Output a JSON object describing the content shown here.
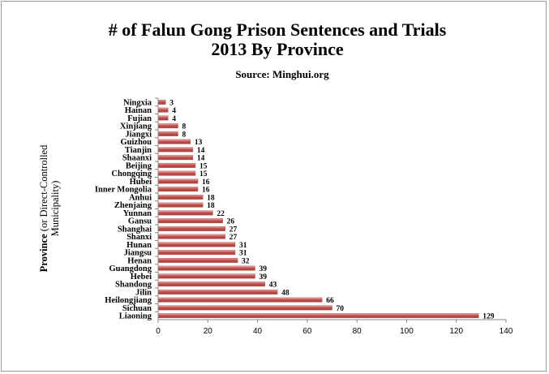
{
  "chart_data": {
    "type": "bar",
    "orientation": "horizontal",
    "title_line1": "# of Falun Gong Prison Sentences and Trials",
    "title_line2": "2013 By Province",
    "subtitle": "Source: Minghui.org",
    "ylabel_bold": "Province",
    "ylabel_rest": " (or Direct-Controlled",
    "ylabel_line2": "Municipality)",
    "xlabel": "",
    "xlim": [
      0,
      140
    ],
    "xticks": [
      0,
      20,
      40,
      60,
      80,
      100,
      120,
      140
    ],
    "grid": false,
    "legend": "none",
    "bar_color": "#c0504d",
    "bar_highlight": "#e8b4b2",
    "categories": [
      "Ningxia",
      "Hainan",
      "Fujian",
      "Xinjiang",
      "Jiangxi",
      "Guizhou",
      "Tianjin",
      "Shaanxi",
      "Beijing",
      "Chongqing",
      "Hubei",
      "Inner Mongolia",
      "Anhui",
      "Zhenjaing",
      "Yunnan",
      "Gansu",
      "Shanghai",
      "Shanxi",
      "Hunan",
      "Jiangsu",
      "Henan",
      "Guangdong",
      "Hebei",
      "Shandong",
      "Jilin",
      "Heilongjiang",
      "Sichuan",
      "Liaoning"
    ],
    "values": [
      3,
      4,
      4,
      8,
      8,
      13,
      14,
      14,
      15,
      15,
      16,
      16,
      18,
      18,
      22,
      26,
      27,
      27,
      31,
      31,
      32,
      39,
      39,
      43,
      48,
      66,
      70,
      129
    ]
  }
}
